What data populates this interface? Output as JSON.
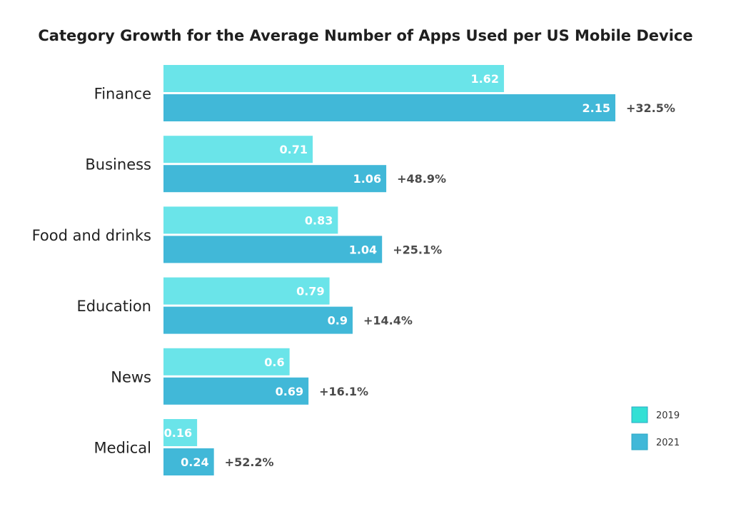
{
  "chart_data": {
    "type": "bar",
    "orientation": "horizontal",
    "title": "Category Growth for the Average Number of Apps Used per US Mobile Device",
    "categories": [
      "Finance",
      "Business",
      "Food and drinks",
      "Education",
      "News",
      "Medical"
    ],
    "series": [
      {
        "name": "2019",
        "color": "#6ae4e9",
        "legend_color": "#33e0d5",
        "values": [
          1.62,
          0.71,
          0.83,
          0.79,
          0.6,
          0.16
        ],
        "labels": [
          "1.62",
          "0.71",
          "0.83",
          "0.79",
          "0.6",
          "0.16"
        ]
      },
      {
        "name": "2021",
        "color": "#41b8d8",
        "legend_color": "#41b8d8",
        "values": [
          2.15,
          1.06,
          1.04,
          0.9,
          0.69,
          0.24
        ],
        "labels": [
          "2.15",
          "1.06",
          "1.04",
          "0.9",
          "0.69",
          "0.24"
        ]
      }
    ],
    "growth_labels": [
      "+32.5%",
      "+48.9%",
      "+25.1%",
      "+14.4%",
      "+16.1%",
      "+52.2%"
    ],
    "xlim": [
      0,
      2.15
    ],
    "legend_position": "bottom-right",
    "grid": false,
    "xlabel": "",
    "ylabel": ""
  }
}
